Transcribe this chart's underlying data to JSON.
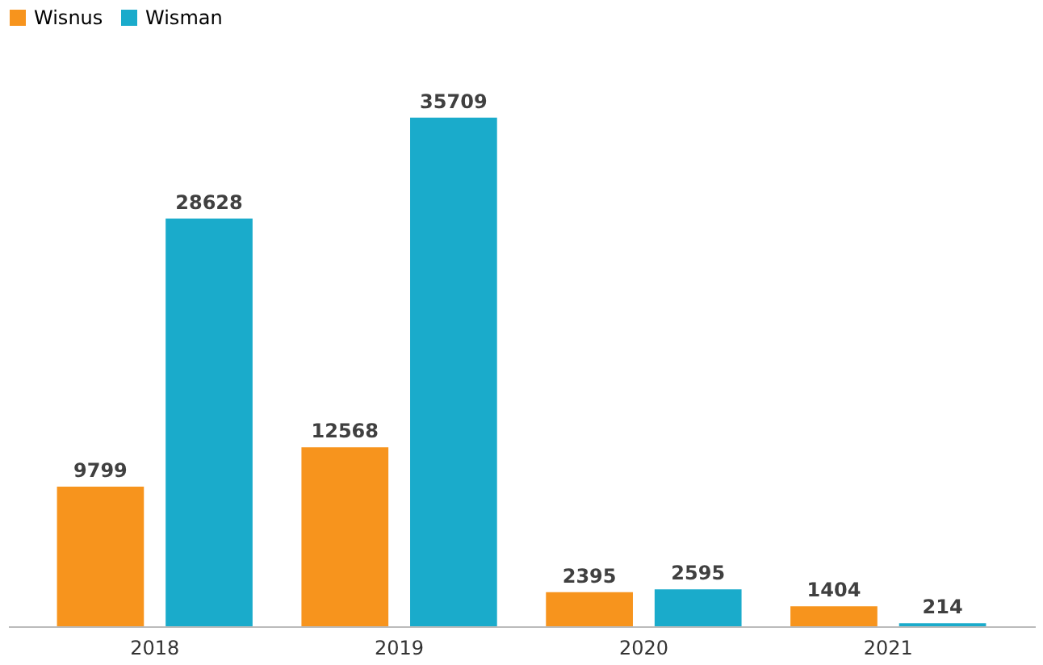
{
  "chart_data": {
    "type": "bar",
    "categories": [
      "2018",
      "2019",
      "2020",
      "2021"
    ],
    "series": [
      {
        "name": "Wisnus",
        "color": "#f7941d",
        "values": [
          9799,
          12568,
          2395,
          1404
        ]
      },
      {
        "name": "Wisman",
        "color": "#1aabcb",
        "values": [
          28628,
          35709,
          2595,
          214
        ]
      }
    ],
    "data_labels": true,
    "legend": "top"
  }
}
